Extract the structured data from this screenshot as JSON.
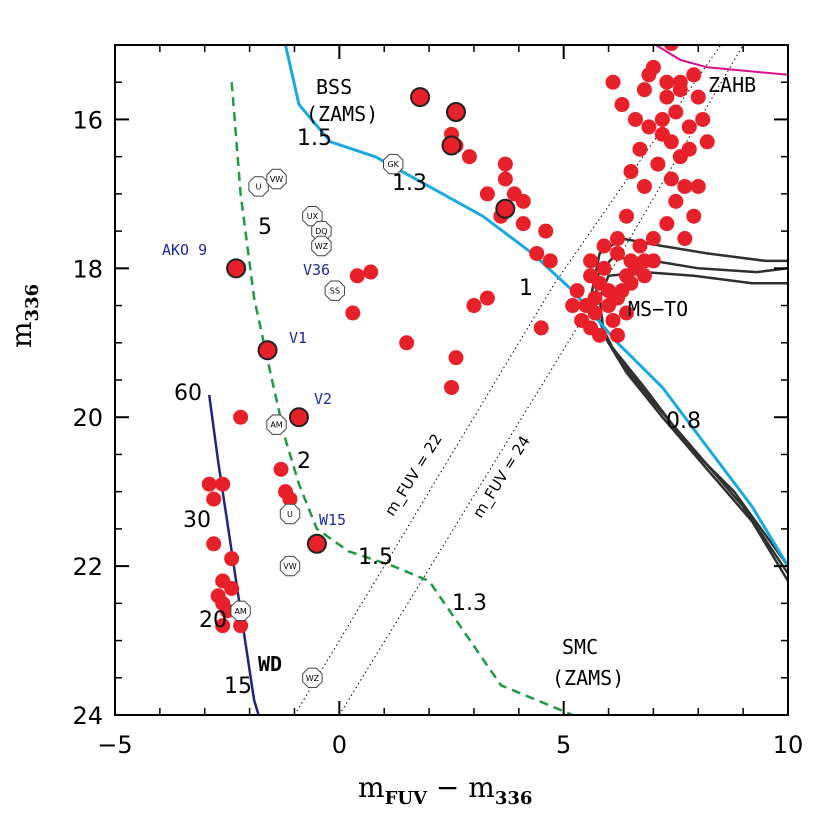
{
  "chart_data": {
    "type": "scatter",
    "xlabel": "m_FUV − m_336",
    "ylabel": "m_336",
    "xlim": [
      -5,
      10
    ],
    "ylim": [
      24,
      15
    ],
    "inverted_y": true,
    "x_ticks": [
      -5,
      0,
      5,
      10
    ],
    "x_tick_labels": [
      "−5",
      "0",
      "5",
      "10"
    ],
    "y_ticks": [
      16,
      18,
      20,
      22,
      24
    ],
    "y_tick_labels": [
      "16",
      "18",
      "20",
      "22",
      "24"
    ],
    "grid": false,
    "colors": {
      "stars": "#e8202a",
      "bss_zams": "#1ba8e0",
      "smc_zams": "#1e9a46",
      "wd": "#23237c",
      "zahb": "#d4108e",
      "isochrones": "#303030",
      "star_labels": "#1d2a9e"
    },
    "cluster_points": [
      [
        7.3,
        15.7
      ],
      [
        7.5,
        15.9
      ],
      [
        7.2,
        16.2
      ],
      [
        7.6,
        16.5
      ],
      [
        7.4,
        16.8
      ],
      [
        7.8,
        16.4
      ],
      [
        7.1,
        16.6
      ],
      [
        7.5,
        17.1
      ],
      [
        7.3,
        17.4
      ],
      [
        7.0,
        17.6
      ],
      [
        7.6,
        15.5
      ],
      [
        8.0,
        15.7
      ],
      [
        7.0,
        15.3
      ],
      [
        6.8,
        15.6
      ],
      [
        6.6,
        16.0
      ],
      [
        6.9,
        16.1
      ],
      [
        6.5,
        16.7
      ],
      [
        6.8,
        16.9
      ],
      [
        6.4,
        17.3
      ],
      [
        6.7,
        17.7
      ],
      [
        8.1,
        16.0
      ],
      [
        8.0,
        16.9
      ],
      [
        7.9,
        17.3
      ],
      [
        7.7,
        17.6
      ],
      [
        7.9,
        15.4
      ],
      [
        7.6,
        15.6
      ],
      [
        7.3,
        15.5
      ],
      [
        6.9,
        15.4
      ],
      [
        7.2,
        16.0
      ],
      [
        7.8,
        16.1
      ],
      [
        8.2,
        16.3
      ],
      [
        7.4,
        16.3
      ],
      [
        7.7,
        16.9
      ],
      [
        6.7,
        16.4
      ],
      [
        6.2,
        17.8
      ],
      [
        6.5,
        17.9
      ],
      [
        6.8,
        17.9
      ],
      [
        7.0,
        17.9
      ],
      [
        6.4,
        18.1
      ],
      [
        6.1,
        15.5
      ],
      [
        6.3,
        15.8
      ],
      [
        7.4,
        14.98
      ],
      [
        5.6,
        18.1
      ],
      [
        5.8,
        18.2
      ],
      [
        6.0,
        18.3
      ],
      [
        6.2,
        18.4
      ],
      [
        6.5,
        18.2
      ],
      [
        6.8,
        18.1
      ],
      [
        5.5,
        18.5
      ],
      [
        5.7,
        18.6
      ],
      [
        6.0,
        18.5
      ],
      [
        6.3,
        18.3
      ],
      [
        5.4,
        18.7
      ],
      [
        5.8,
        18.9
      ],
      [
        6.1,
        18.7
      ],
      [
        6.6,
        18.0
      ],
      [
        5.6,
        18.8
      ],
      [
        5.2,
        18.5
      ],
      [
        5.3,
        18.3
      ],
      [
        5.9,
        18.0
      ],
      [
        6.4,
        18.6
      ],
      [
        6.2,
        18.9
      ],
      [
        5.9,
        17.7
      ],
      [
        5.6,
        17.9
      ],
      [
        6.2,
        17.6
      ],
      [
        5.7,
        18.4
      ],
      [
        1.8,
        15.7
      ],
      [
        2.6,
        15.9
      ],
      [
        2.5,
        16.2
      ],
      [
        2.6,
        16.35
      ],
      [
        2.9,
        16.5
      ],
      [
        3.7,
        16.8
      ],
      [
        3.9,
        17.0
      ],
      [
        3.3,
        17.0
      ],
      [
        3.6,
        17.3
      ],
      [
        3.7,
        17.2
      ],
      [
        3.7,
        16.6
      ],
      [
        4.1,
        17.1
      ],
      [
        4.1,
        17.4
      ],
      [
        4.6,
        17.5
      ],
      [
        4.4,
        17.8
      ],
      [
        4.7,
        17.9
      ],
      [
        3.3,
        18.4
      ],
      [
        3.0,
        18.5
      ],
      [
        0.3,
        18.6
      ],
      [
        0.7,
        18.05
      ],
      [
        0.4,
        18.1
      ],
      [
        1.5,
        19.0
      ],
      [
        2.5,
        19.6
      ],
      [
        2.6,
        19.2
      ],
      [
        4.5,
        18.8
      ],
      [
        -2.3,
        18.0
      ],
      [
        -1.6,
        19.1
      ],
      [
        -2.2,
        20.0
      ],
      [
        -0.9,
        20.0
      ],
      [
        -1.3,
        20.7
      ],
      [
        -1.2,
        21.0
      ],
      [
        -1.1,
        21.1
      ],
      [
        -0.5,
        21.7
      ],
      [
        -2.9,
        20.9
      ],
      [
        -2.6,
        20.9
      ],
      [
        -2.8,
        21.1
      ],
      [
        -2.8,
        21.7
      ],
      [
        -2.4,
        21.9
      ],
      [
        -2.6,
        22.2
      ],
      [
        -2.4,
        22.3
      ],
      [
        -2.7,
        22.4
      ],
      [
        -2.6,
        22.5
      ],
      [
        -2.5,
        22.6
      ],
      [
        -2.2,
        22.6
      ],
      [
        -2.6,
        22.8
      ],
      [
        -2.2,
        22.8
      ]
    ],
    "ringed_points": [
      [
        1.8,
        15.7
      ],
      [
        2.6,
        15.9
      ],
      [
        2.5,
        16.35
      ],
      [
        3.7,
        17.2
      ],
      [
        -2.3,
        18.0
      ],
      [
        -1.6,
        19.1
      ],
      [
        -0.9,
        20.0
      ],
      [
        -0.5,
        21.7
      ]
    ],
    "cv_candidates": [
      {
        "label": "U",
        "x": -1.8,
        "y": 16.9
      },
      {
        "label": "VW",
        "x": -1.4,
        "y": 16.8
      },
      {
        "label": "GK",
        "x": 1.2,
        "y": 16.6
      },
      {
        "label": "UX",
        "x": -0.6,
        "y": 17.3
      },
      {
        "label": "DQ",
        "x": -0.4,
        "y": 17.5
      },
      {
        "label": "WZ",
        "x": -0.4,
        "y": 17.7
      },
      {
        "label": "SS",
        "x": -0.1,
        "y": 18.3
      },
      {
        "label": "AM",
        "x": -1.4,
        "y": 20.1
      },
      {
        "label": "U",
        "x": -1.1,
        "y": 21.3
      },
      {
        "label": "VW",
        "x": -1.1,
        "y": 22.0
      },
      {
        "label": "AM",
        "x": -2.2,
        "y": 22.6
      },
      {
        "label": "WZ",
        "x": -0.6,
        "y": 23.5
      }
    ],
    "bss_zams_curve": [
      [
        -1.2,
        15.0
      ],
      [
        -0.9,
        15.8
      ],
      [
        -0.2,
        16.3
      ],
      [
        0.8,
        16.5
      ],
      [
        2.0,
        16.9
      ],
      [
        3.2,
        17.3
      ],
      [
        4.3,
        17.8
      ],
      [
        5.2,
        18.3
      ],
      [
        6.2,
        19.0
      ],
      [
        7.2,
        19.6
      ],
      [
        8.2,
        20.4
      ],
      [
        9.2,
        21.2
      ],
      [
        10.0,
        22.0
      ]
    ],
    "smc_zams_curve": [
      [
        -2.4,
        15.5
      ],
      [
        -2.2,
        17.0
      ],
      [
        -1.9,
        18.4
      ],
      [
        -1.5,
        19.5
      ],
      [
        -1.2,
        20.3
      ],
      [
        -0.9,
        20.9
      ],
      [
        -0.5,
        21.5
      ],
      [
        0.2,
        21.8
      ],
      [
        1.2,
        22.0
      ],
      [
        2.0,
        22.2
      ],
      [
        2.8,
        22.9
      ],
      [
        3.6,
        23.6
      ],
      [
        5.2,
        24.0
      ]
    ],
    "wd_curve": [
      [
        -2.9,
        19.7
      ],
      [
        -2.7,
        20.6
      ],
      [
        -2.5,
        21.4
      ],
      [
        -2.3,
        22.2
      ],
      [
        -2.1,
        23.0
      ],
      [
        -1.9,
        23.8
      ],
      [
        -1.8,
        24.0
      ]
    ],
    "zahb_curve": [
      [
        -1.5,
        15.0
      ],
      [
        7.0,
        14.98
      ],
      [
        7.6,
        15.2
      ],
      [
        8.2,
        15.3
      ],
      [
        10.0,
        15.4
      ]
    ],
    "isochrones": [
      [
        [
          10.0,
          17.9
        ],
        [
          9.5,
          17.9
        ],
        [
          8.2,
          17.8
        ],
        [
          7.2,
          17.7
        ],
        [
          6.3,
          17.6
        ],
        [
          5.8,
          17.8
        ],
        [
          5.6,
          18.4
        ],
        [
          6.0,
          19.0
        ],
        [
          6.8,
          19.6
        ],
        [
          7.8,
          20.4
        ],
        [
          8.8,
          21.0
        ],
        [
          10.0,
          22.0
        ]
      ],
      [
        [
          10.0,
          18.0
        ],
        [
          9.3,
          18.05
        ],
        [
          8.0,
          18.0
        ],
        [
          7.0,
          17.9
        ],
        [
          6.1,
          17.85
        ],
        [
          5.75,
          18.1
        ],
        [
          5.7,
          18.6
        ],
        [
          6.2,
          19.2
        ],
        [
          7.0,
          19.8
        ],
        [
          8.0,
          20.5
        ],
        [
          9.0,
          21.2
        ],
        [
          10.0,
          22.1
        ]
      ],
      [
        [
          10.0,
          18.2
        ],
        [
          9.2,
          18.2
        ],
        [
          7.9,
          18.1
        ],
        [
          6.8,
          18.05
        ],
        [
          6.0,
          18.1
        ],
        [
          5.8,
          18.4
        ],
        [
          5.9,
          18.9
        ],
        [
          6.4,
          19.4
        ],
        [
          7.2,
          20.0
        ],
        [
          8.2,
          20.7
        ],
        [
          9.2,
          21.4
        ],
        [
          10.0,
          22.2
        ]
      ]
    ],
    "fuv_iso_lines": [
      {
        "label": "m_FUV = 22",
        "points": [
          [
            -1.0,
            24.0
          ],
          [
            4.8,
            18.2
          ],
          [
            8.5,
            15.0
          ]
        ]
      },
      {
        "label": "m_FUV = 24",
        "points": [
          [
            0.0,
            24.0
          ],
          [
            5.6,
            18.5
          ],
          [
            9.0,
            15.0
          ]
        ]
      }
    ],
    "annotations": {
      "bss": "BSS",
      "bss_zams": "(ZAMS)",
      "zahb": "ZAHB",
      "ms_to": "MS−TO",
      "smc": "SMC",
      "smc_zams": "(ZAMS)",
      "wd": "WD",
      "mass_labels": [
        "1.5",
        "1.3",
        "1",
        "0.8",
        "5",
        "2",
        "1.5",
        "1.3",
        "60",
        "30",
        "20",
        "15"
      ],
      "fuv22_label": "m_FUV = 22",
      "fuv24_label": "m_FUV = 24"
    },
    "star_labels": [
      {
        "label": "AKO 9"
      },
      {
        "label": "V36"
      },
      {
        "label": "V1"
      },
      {
        "label": "V2"
      },
      {
        "label": "W15"
      }
    ]
  }
}
